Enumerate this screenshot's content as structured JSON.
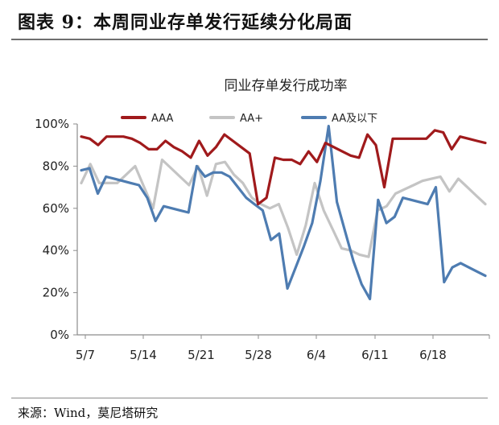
{
  "figure": {
    "caption": "图表 9：本周同业存单发行延续分化局面",
    "source": "来源：Wind，莫尼塔研究"
  },
  "chart_data": {
    "type": "line",
    "title": "同业存单发行成功率",
    "xlabel": "",
    "ylabel": "",
    "x_ticks": [
      "5/7",
      "5/14",
      "5/21",
      "5/28",
      "6/4",
      "6/11",
      "6/18"
    ],
    "y_ticks": [
      "0%",
      "20%",
      "40%",
      "60%",
      "80%",
      "100%"
    ],
    "ylim": [
      0,
      100
    ],
    "grid": false,
    "legend_position": "top",
    "series": [
      {
        "name": "AAA",
        "color": "#a01a1c",
        "values": [
          94,
          93,
          90,
          94,
          94,
          94,
          93,
          91,
          88,
          88,
          92,
          89,
          87,
          84,
          92,
          85,
          89,
          95,
          92,
          89,
          86,
          62,
          65,
          84,
          83,
          83,
          81,
          87,
          82,
          91,
          89,
          87,
          85,
          84,
          95,
          90,
          70,
          93,
          93,
          93,
          93,
          93,
          97,
          96,
          88,
          94,
          93,
          92,
          91
        ]
      },
      {
        "name": "AA+",
        "color": "#c4c4c4",
        "values": [
          72,
          81,
          72,
          72,
          72,
          76,
          80,
          70,
          60,
          83,
          79,
          75,
          71,
          80,
          66,
          81,
          82,
          76,
          72,
          65,
          62,
          60,
          62,
          51,
          38,
          52,
          72,
          59,
          50,
          41,
          40,
          38,
          37,
          59,
          61,
          67,
          69,
          71,
          73,
          74,
          75,
          68,
          74,
          70,
          66,
          62
        ]
      },
      {
        "name": "AA及以下",
        "color": "#4e7cb1",
        "values": [
          78,
          79,
          67,
          75,
          74,
          73,
          72,
          71,
          65,
          54,
          61,
          60,
          59,
          58,
          80,
          75,
          77,
          77,
          75,
          70,
          65,
          62,
          59,
          45,
          48,
          22,
          32,
          42,
          53,
          73,
          99,
          63,
          49,
          35,
          24,
          17,
          64,
          53,
          56,
          65,
          64,
          63,
          62,
          70,
          25,
          32,
          34,
          32,
          30,
          28
        ]
      }
    ]
  }
}
